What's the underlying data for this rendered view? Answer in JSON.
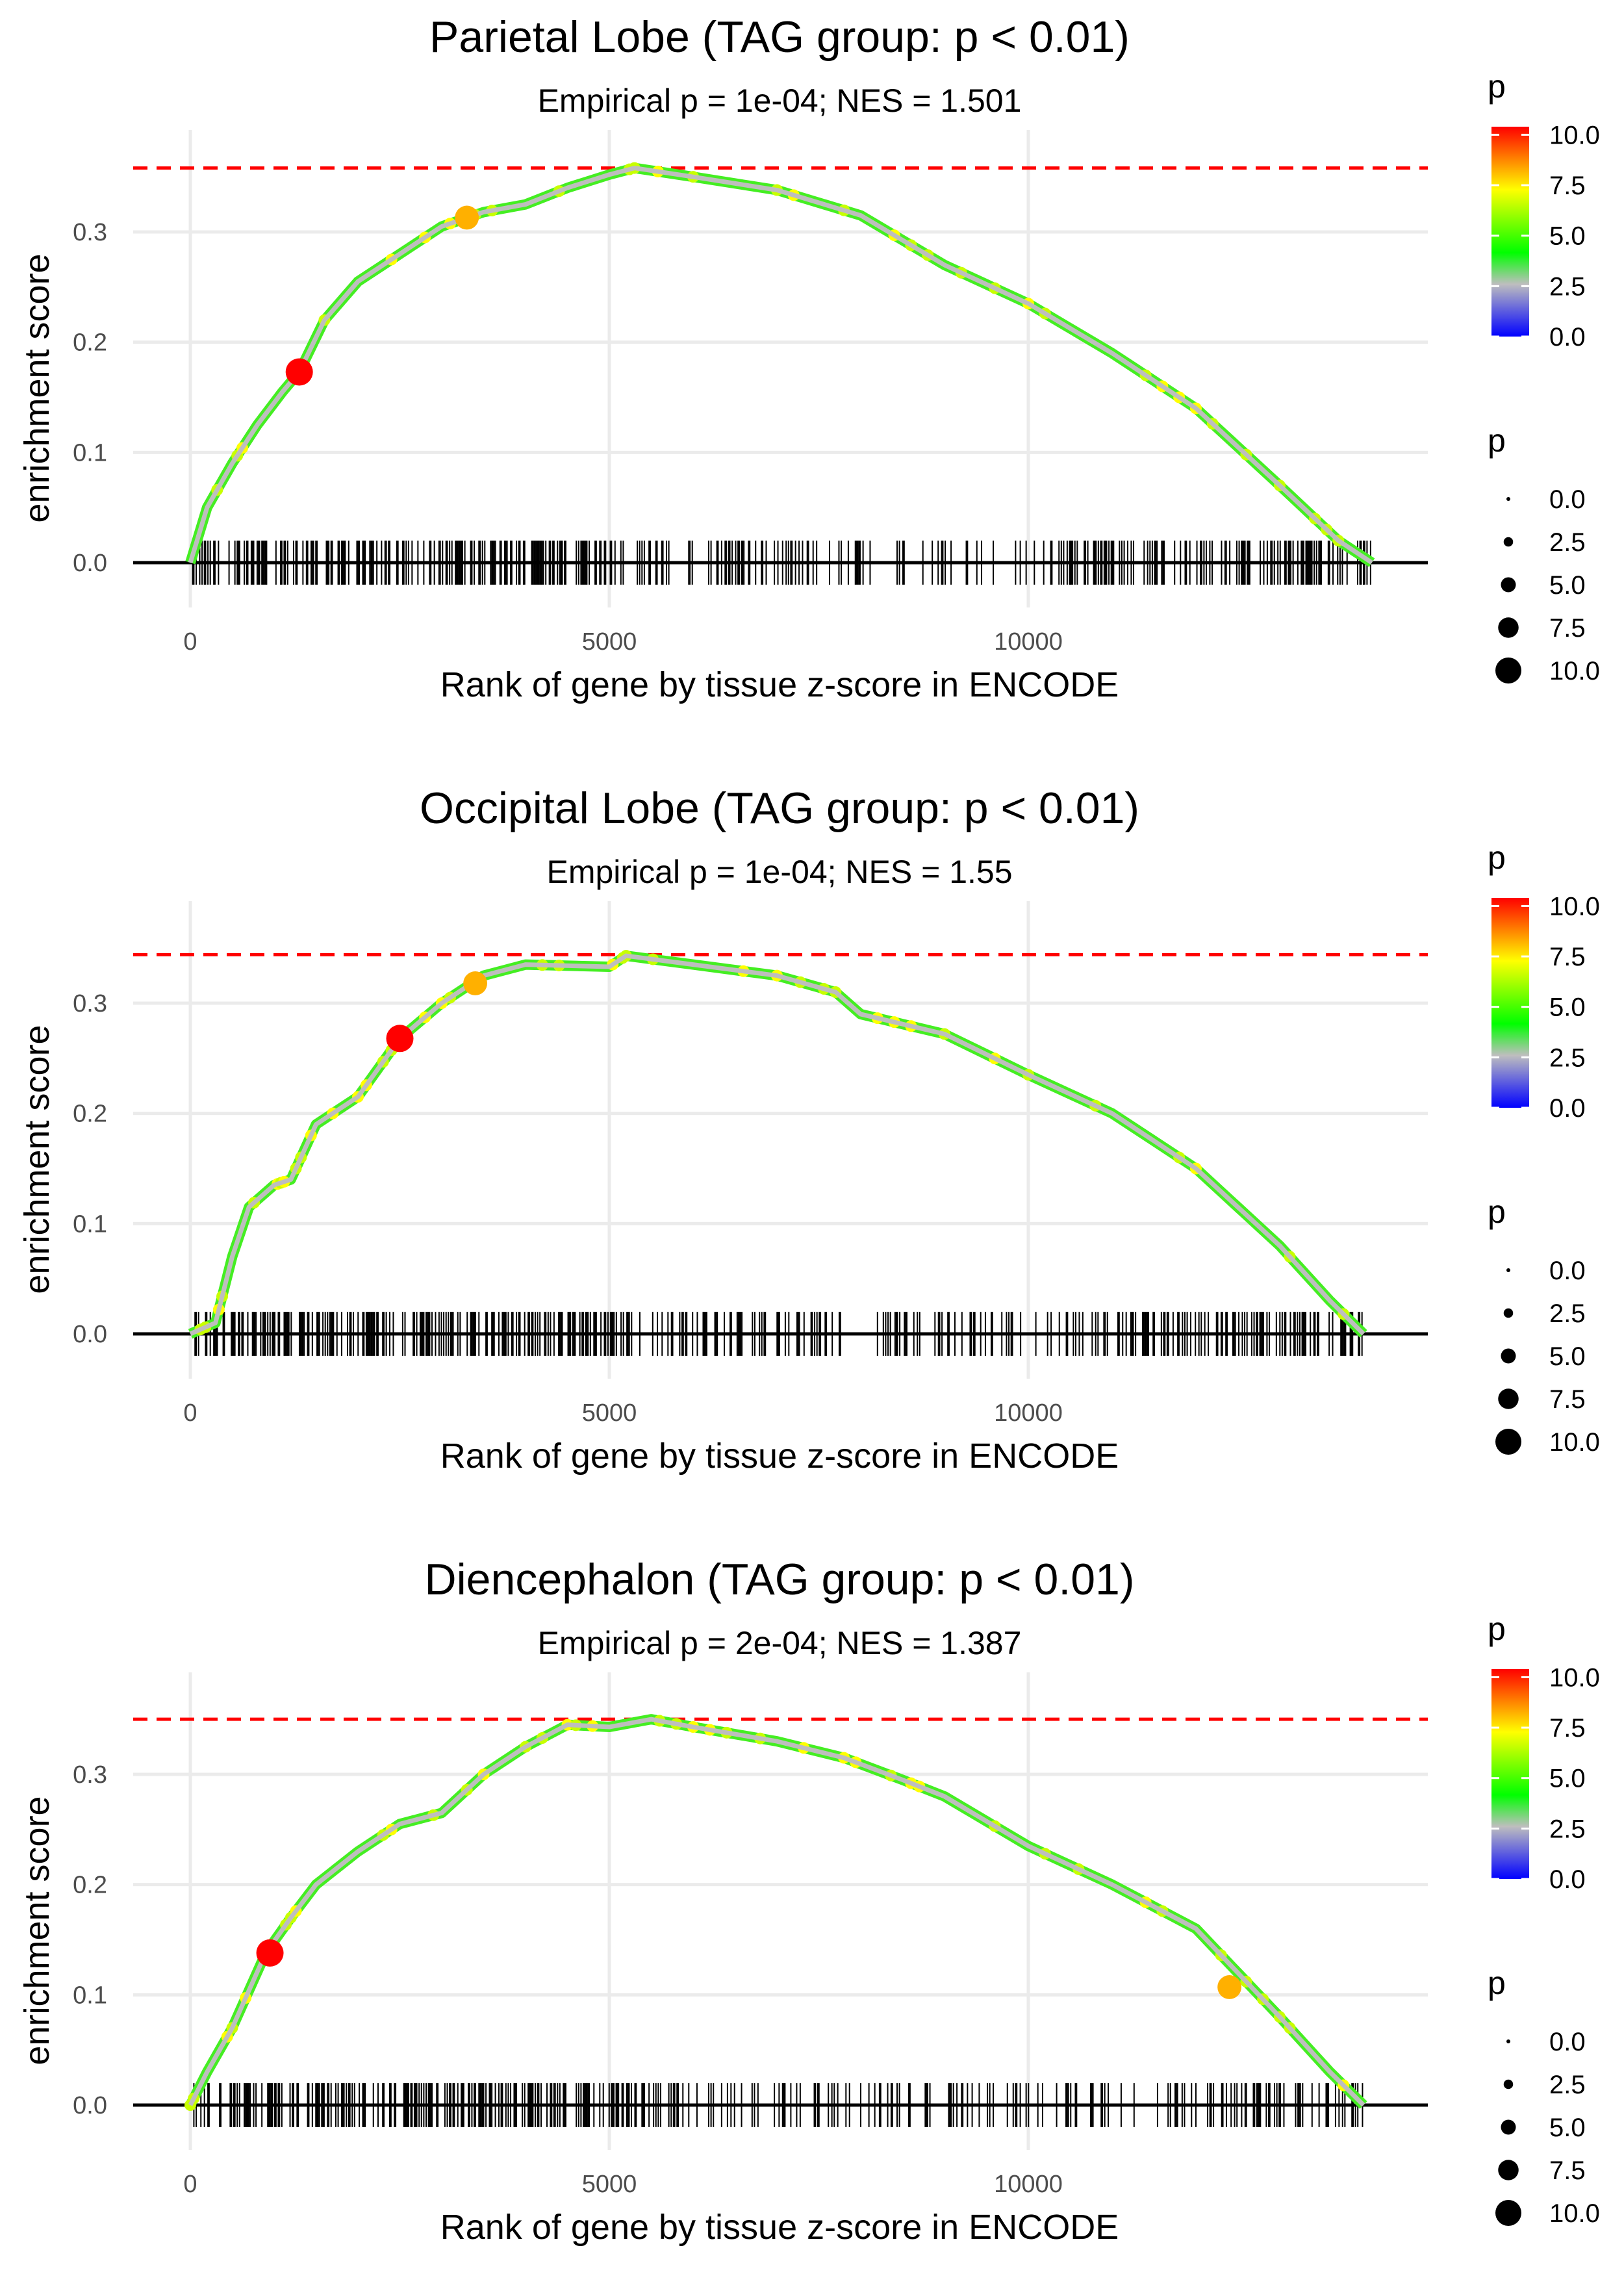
{
  "chart_data": [
    {
      "type": "line",
      "title": "Parietal Lobe (TAG group: p < 0.01)",
      "subtitle": "Empirical p = 1e-04; NES = 1.501",
      "xlabel": "Rank of gene by tissue z-score in ENCODE",
      "ylabel": "enrichment score",
      "xlim": [
        -700,
        14800
      ],
      "ylim": [
        -0.04,
        0.365
      ],
      "xticks": [
        "0",
        "5000",
        "10000"
      ],
      "yticks": [
        "0.0",
        "0.1",
        "0.2",
        "0.3"
      ],
      "max_es": 0.358,
      "x": [
        0,
        200,
        500,
        800,
        1100,
        1300,
        1600,
        2000,
        2500,
        3000,
        3500,
        4000,
        4500,
        5000,
        5300,
        6000,
        7000,
        8000,
        9000,
        10000,
        11000,
        12000,
        13000,
        13700,
        14100
      ],
      "y": [
        0,
        0.05,
        0.09,
        0.125,
        0.155,
        0.173,
        0.22,
        0.255,
        0.28,
        0.305,
        0.318,
        0.325,
        0.34,
        0.352,
        0.358,
        0.35,
        0.338,
        0.315,
        0.27,
        0.235,
        0.19,
        0.14,
        0.07,
        0.02,
        0
      ],
      "highlights": [
        {
          "x": 1300,
          "y": 0.173,
          "p": 10
        },
        {
          "x": 3300,
          "y": 0.313,
          "p": 8
        }
      ],
      "rug_density": [
        [
          0,
          5500,
          1
        ],
        [
          5500,
          8000,
          0.6
        ],
        [
          8000,
          10500,
          0.4
        ],
        [
          10500,
          14100,
          0.8
        ]
      ]
    },
    {
      "type": "line",
      "title": "Occipital Lobe (TAG group: p < 0.01)",
      "subtitle": "Empirical p = 1e-04; NES = 1.55",
      "xlabel": "Rank of gene by tissue z-score in ENCODE",
      "ylabel": "enrichment score",
      "xlim": [
        -700,
        14800
      ],
      "ylim": [
        -0.04,
        0.35
      ],
      "xticks": [
        "0",
        "5000",
        "10000"
      ],
      "yticks": [
        "0.0",
        "0.1",
        "0.2",
        "0.3"
      ],
      "max_es": 0.344,
      "x": [
        0,
        300,
        500,
        700,
        1000,
        1200,
        1500,
        2000,
        2500,
        3000,
        3500,
        4000,
        5000,
        5200,
        6000,
        7000,
        7700,
        8000,
        9000,
        10000,
        11000,
        12000,
        13000,
        13600,
        14000
      ],
      "y": [
        0,
        0.01,
        0.07,
        0.115,
        0.135,
        0.14,
        0.19,
        0.215,
        0.268,
        0.3,
        0.325,
        0.335,
        0.333,
        0.343,
        0.335,
        0.325,
        0.31,
        0.29,
        0.272,
        0.235,
        0.2,
        0.15,
        0.08,
        0.03,
        0
      ],
      "highlights": [
        {
          "x": 2500,
          "y": 0.268,
          "p": 10
        },
        {
          "x": 3400,
          "y": 0.318,
          "p": 8
        }
      ],
      "rug_density": [
        [
          0,
          5000,
          1
        ],
        [
          5000,
          7800,
          0.7
        ],
        [
          7800,
          8200,
          0.05
        ],
        [
          8200,
          11000,
          0.6
        ],
        [
          11000,
          14000,
          0.9
        ]
      ]
    },
    {
      "type": "line",
      "title": "Diencephalon (TAG group: p < 0.01)",
      "subtitle": "Empirical p = 2e-04; NES = 1.387",
      "xlabel": "Rank of gene by tissue z-score in ENCODE",
      "ylabel": "enrichment score",
      "xlim": [
        -700,
        14800
      ],
      "ylim": [
        -0.04,
        0.355
      ],
      "xticks": [
        "0",
        "5000",
        "10000"
      ],
      "yticks": [
        "0.0",
        "0.1",
        "0.2",
        "0.3"
      ],
      "max_es": 0.35,
      "x": [
        0,
        200,
        500,
        900,
        1200,
        1500,
        2000,
        2500,
        3000,
        3500,
        4000,
        4500,
        5000,
        5500,
        6000,
        7000,
        7800,
        8500,
        9000,
        10000,
        11000,
        12000,
        12500,
        13000,
        13600,
        14000
      ],
      "y": [
        0,
        0.03,
        0.07,
        0.138,
        0.17,
        0.2,
        0.23,
        0.255,
        0.265,
        0.3,
        0.325,
        0.345,
        0.343,
        0.35,
        0.343,
        0.33,
        0.315,
        0.295,
        0.28,
        0.235,
        0.2,
        0.16,
        0.12,
        0.08,
        0.03,
        0
      ],
      "highlights": [
        {
          "x": 950,
          "y": 0.138,
          "p": 10
        },
        {
          "x": 12400,
          "y": 0.107,
          "p": 8
        }
      ],
      "rug_density": [
        [
          0,
          5500,
          1
        ],
        [
          5500,
          8000,
          0.6
        ],
        [
          8000,
          12000,
          0.5
        ],
        [
          12000,
          14000,
          0.9
        ]
      ]
    }
  ],
  "legend": {
    "color_title": "p",
    "color_labels": [
      "10.0",
      "7.5",
      "5.0",
      "2.5",
      "0.0"
    ],
    "size_title": "p",
    "size_labels": [
      "0.0",
      "2.5",
      "5.0",
      "7.5",
      "10.0"
    ]
  },
  "colors": {
    "line": "#bebebe",
    "max_line": "#ff0000",
    "high": "#ff0000",
    "mid": "#ffff00",
    "low": "#00ff00"
  }
}
